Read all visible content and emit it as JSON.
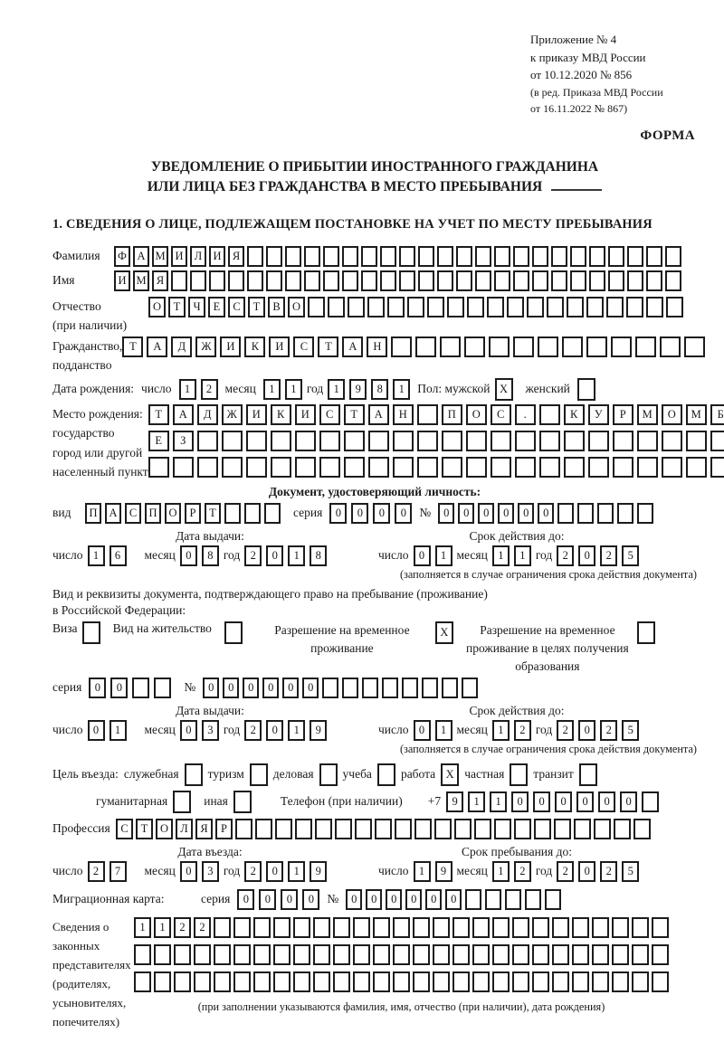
{
  "colors": {
    "ink": "#1a1a1a",
    "paper": "#ffffff"
  },
  "header": {
    "line1": "Приложение № 4",
    "line2": "к приказу МВД России",
    "line3": "от 10.12.2020 № 856",
    "line4": "(в ред. Приказа МВД России",
    "line5": "от 16.11.2022 № 867)",
    "forma": "ФОРМА"
  },
  "title": {
    "line1": "УВЕДОМЛЕНИЕ О ПРИБЫТИИ ИНОСТРАННОГО ГРАЖДАНИНА",
    "line2": "ИЛИ ЛИЦА БЕЗ ГРАЖДАНСТВА В МЕСТО ПРЕБЫВАНИЯ",
    "section1": "1. СВЕДЕНИЯ О ЛИЦЕ, ПОДЛЕЖАЩЕМ ПОСТАНОВКЕ НА УЧЕТ ПО МЕСТУ ПРЕБЫВАНИЯ"
  },
  "date_labels": {
    "day": "число",
    "month": "месяц",
    "year": "год"
  },
  "labels": {
    "seria": "серия",
    "num": "№"
  },
  "fields": {
    "surname": {
      "label": "Фамилия",
      "cells": {
        "value": "ФАМИЛИЯ",
        "total": 30
      }
    },
    "name": {
      "label": "Имя",
      "cells": {
        "value": "ИМЯ",
        "total": 30
      }
    },
    "patronymic": {
      "label": "Отчество",
      "label2": "(при наличии)",
      "cells": {
        "value": "ОТЧЕСТВО",
        "total": 27
      }
    },
    "citizenship": {
      "label": "Гражданство,",
      "label2": "подданство",
      "cells": {
        "value": "ТАДЖИКИСТАН",
        "total": 24
      }
    },
    "birth": {
      "label": "Дата рождения:",
      "day": "12",
      "month": "11",
      "year": "1981",
      "sex_label": "Пол: мужской",
      "male": {
        "value": "X",
        "total": 1
      },
      "female_label": "женский",
      "female": {
        "value": "",
        "total": 1
      }
    },
    "birthplace": {
      "label1": "Место рождения:",
      "label2": "государство",
      "label3": "город или другой",
      "label4": "населенный пункт",
      "row1": {
        "value": "ТАДЖИКИСТАН ПОС. КУРМОМБ",
        "total": 24
      },
      "row2": {
        "value": "ЕЗ",
        "total": 24
      },
      "row3": {
        "value": "",
        "total": 24
      }
    }
  },
  "iddoc": {
    "heading": "Документ, удостоверяющий личность:",
    "vid_label": "вид",
    "vid": {
      "value": "ПАСПОРТ",
      "total": 10
    },
    "seria": "0000",
    "num": {
      "value": "000000",
      "total": 11
    },
    "issued_label": "Дата выдачи:",
    "issued": {
      "day": "16",
      "month": "08",
      "year": "2018"
    },
    "valid_label": "Срок действия до:",
    "valid": {
      "day": "01",
      "month": "11",
      "year": "2025"
    },
    "note": "(заполняется в случае ограничения срока действия документа)"
  },
  "resid": {
    "line1": "Вид и реквизиты документа, подтверждающего право на пребывание (проживание)",
    "line2": "в Российской Федерации:",
    "visa_label": "Виза",
    "visa": {
      "value": "",
      "total": 1
    },
    "vnj_label": "Вид на жительство",
    "vnj": {
      "value": "",
      "total": 1
    },
    "rvp_label": "Разрешение на временное проживание",
    "rvp": {
      "value": "X",
      "total": 1
    },
    "rvpo_label": "Разрешение на временное проживание в целях получения образования",
    "rvpo": {
      "value": "",
      "total": 1
    },
    "seria": {
      "value": "00",
      "total": 4
    },
    "num": {
      "value": "000000",
      "total": 14
    },
    "issued_label": "Дата выдачи:",
    "issued": {
      "day": "01",
      "month": "03",
      "year": "2019"
    },
    "valid_label": "Срок действия до:",
    "valid": {
      "day": "01",
      "month": "12",
      "year": "2025"
    },
    "note": "(заполняется в случае ограничения срока действия документа)"
  },
  "purpose": {
    "label": "Цель въезда:",
    "options": [
      {
        "label": "служебная",
        "box": {
          "value": "",
          "total": 1
        }
      },
      {
        "label": "туризм",
        "box": {
          "value": "",
          "total": 1
        }
      },
      {
        "label": "деловая",
        "box": {
          "value": "",
          "total": 1
        }
      },
      {
        "label": "учеба",
        "box": {
          "value": "",
          "total": 1
        }
      },
      {
        "label": "работа",
        "box": {
          "value": "X",
          "total": 1
        }
      },
      {
        "label": "частная",
        "box": {
          "value": "",
          "total": 1
        }
      },
      {
        "label": "транзит",
        "box": {
          "value": "",
          "total": 1
        }
      },
      {
        "label": "гуманитарная",
        "box": {
          "value": "",
          "total": 1
        }
      },
      {
        "label": "иная",
        "box": {
          "value": "",
          "total": 1
        }
      }
    ],
    "phone_label": "Телефон (при наличии)",
    "phone_prefix": "+7",
    "phone": {
      "value": "911000000",
      "total": 10
    }
  },
  "profession": {
    "label": "Профессия",
    "cells": {
      "value": "СТОЛЯР",
      "total": 27
    }
  },
  "stay": {
    "entry_label": "Дата въезда:",
    "entry": {
      "day": "27",
      "month": "03",
      "year": "2019"
    },
    "until_label": "Срок пребывания до:",
    "until": {
      "day": "19",
      "month": "12",
      "year": "2025"
    }
  },
  "migcard": {
    "label": "Миграционная карта:",
    "seria": "0000",
    "num": {
      "value": "000000",
      "total": 11
    }
  },
  "reps": {
    "l1": "Сведения о",
    "l2": "законных",
    "l3": "представителях",
    "l4": "(родителях,",
    "l5": "усыновителях,",
    "l6": "попечителях)",
    "row1": {
      "value": "1122",
      "total": 27
    },
    "row2": {
      "value": "",
      "total": 27
    },
    "row3": {
      "value": "",
      "total": 27
    },
    "note": "(при заполнении указываются фамилия, имя, отчество (при наличии), дата рождения)"
  }
}
